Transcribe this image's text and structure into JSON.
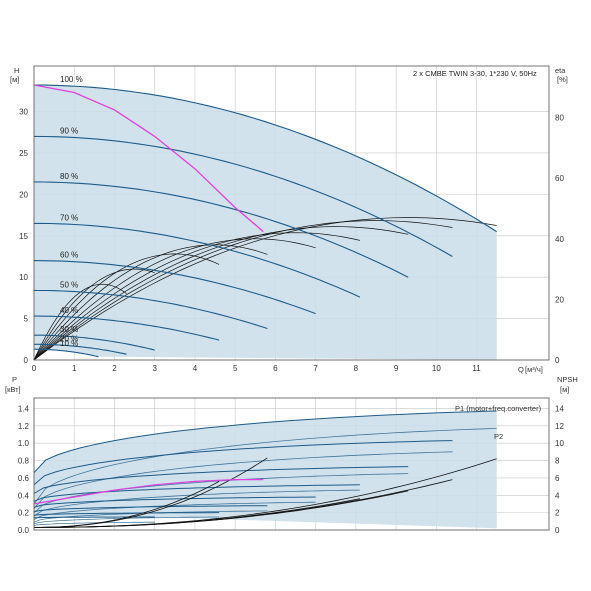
{
  "title": "2 x CMBE TWIN 3-30, 1*230 V, 50Hz",
  "colors": {
    "region": "#c9dde9",
    "curve": "#1d5b8a",
    "dark_curve": "#111111",
    "system": "#e040e0",
    "grid": "#c8c8c8",
    "frame": "#555555"
  },
  "chart_data": [
    {
      "type": "line",
      "name": "performance",
      "xlabel": "Q",
      "xunit": "[м³/ч]",
      "ylabel_left": "H",
      "yunit_left": "[м]",
      "ylabel_right": "eta",
      "yunit_right": "[%]",
      "xlim": [
        0,
        12.8
      ],
      "ylim": [
        0,
        35.5
      ],
      "eta_lim": [
        0,
        97
      ],
      "x_ticks": [
        0,
        1,
        2,
        3,
        4,
        5,
        6,
        7,
        8,
        9,
        10,
        11
      ],
      "y_ticks": [
        0,
        5,
        10,
        15,
        20,
        25,
        30
      ],
      "eta_ticks": [
        0,
        20,
        40,
        60,
        80
      ],
      "grid": true,
      "speed_curves": [
        {
          "label": "100 %",
          "h0": 33.2,
          "qmax": 11.5,
          "hend": 15.5
        },
        {
          "label": "90 %",
          "h0": 27.0,
          "qmax": 10.4,
          "hend": 12.5
        },
        {
          "label": "80 %",
          "h0": 21.5,
          "qmax": 9.3,
          "hend": 10.0
        },
        {
          "label": "70 %",
          "h0": 16.5,
          "qmax": 8.1,
          "hend": 7.6
        },
        {
          "label": "60 %",
          "h0": 12.0,
          "qmax": 7.0,
          "hend": 5.6
        },
        {
          "label": "50 %",
          "h0": 8.4,
          "qmax": 5.8,
          "hend": 3.8
        },
        {
          "label": "40 %",
          "h0": 5.3,
          "qmax": 4.6,
          "hend": 2.4
        },
        {
          "label": "30 %",
          "h0": 3.0,
          "qmax": 3.0,
          "hend": 1.2
        },
        {
          "label": "20 %",
          "h0": 1.9,
          "qmax": 2.3,
          "hend": 0.7
        },
        {
          "label": "10 %",
          "h0": 1.3,
          "qmax": 1.6,
          "hend": 0.4
        }
      ],
      "system_curve": {
        "x": [
          0,
          1.0,
          2.0,
          3.0,
          4.0,
          5.0,
          5.7
        ],
        "y": [
          33.2,
          32.3,
          30.2,
          27.0,
          23.1,
          18.4,
          15.5
        ]
      },
      "efficiency_curves": [
        {
          "qpeak": 9.3,
          "eta_peak": 47,
          "qmax": 11.5
        },
        {
          "qpeak": 8.5,
          "eta_peak": 46,
          "qmax": 10.4
        },
        {
          "qpeak": 7.5,
          "eta_peak": 44,
          "qmax": 9.3
        },
        {
          "qpeak": 6.5,
          "eta_peak": 42,
          "qmax": 8.1
        },
        {
          "qpeak": 5.5,
          "eta_peak": 40,
          "qmax": 7.0
        },
        {
          "qpeak": 4.5,
          "eta_peak": 38,
          "qmax": 5.8
        },
        {
          "qpeak": 3.5,
          "eta_peak": 35,
          "qmax": 4.6
        },
        {
          "qpeak": 2.5,
          "eta_peak": 30,
          "qmax": 3.0
        },
        {
          "qpeak": 1.7,
          "eta_peak": 25,
          "qmax": 2.3
        }
      ]
    },
    {
      "type": "line",
      "name": "power_npsh",
      "xlabel": "Q",
      "ylabel_left": "P",
      "yunit_left": "[кВт]",
      "ylabel_right": "NPSH",
      "yunit_right": "[м]",
      "xlim": [
        0,
        12.8
      ],
      "ylim": [
        0,
        1.52
      ],
      "npsh_lim": [
        0,
        15.2
      ],
      "y_ticks": [
        0,
        0.2,
        0.4,
        0.6,
        0.8,
        1.0,
        1.2,
        1.4
      ],
      "npsh_ticks": [
        0,
        2,
        4,
        6,
        8,
        10,
        12,
        14
      ],
      "grid": true,
      "series_labels": [
        "P1 (motor+freq.converter)",
        "P2"
      ],
      "p1_curves": [
        {
          "p0": 0.66,
          "pend": 1.37,
          "qmax": 11.5
        },
        {
          "p0": 0.52,
          "pend": 1.03,
          "qmax": 10.4
        },
        {
          "p0": 0.42,
          "pend": 0.73,
          "qmax": 9.3
        },
        {
          "p0": 0.33,
          "pend": 0.52,
          "qmax": 8.1
        },
        {
          "p0": 0.26,
          "pend": 0.38,
          "qmax": 7.0
        },
        {
          "p0": 0.21,
          "pend": 0.28,
          "qmax": 5.8
        },
        {
          "p0": 0.17,
          "pend": 0.2,
          "qmax": 4.6
        },
        {
          "p0": 0.14,
          "pend": 0.15,
          "qmax": 3.0
        }
      ],
      "p2_curves": [
        {
          "p0": 0.3,
          "pend": 1.17,
          "qmax": 11.5
        },
        {
          "p0": 0.25,
          "pend": 0.9,
          "qmax": 10.4
        },
        {
          "p0": 0.2,
          "pend": 0.65,
          "qmax": 9.3
        },
        {
          "p0": 0.16,
          "pend": 0.46,
          "qmax": 8.1
        },
        {
          "p0": 0.12,
          "pend": 0.32,
          "qmax": 7.0
        },
        {
          "p0": 0.09,
          "pend": 0.22,
          "qmax": 5.8
        },
        {
          "p0": 0.07,
          "pend": 0.15,
          "qmax": 4.6
        },
        {
          "p0": 0.05,
          "pend": 0.09,
          "qmax": 3.0
        }
      ],
      "power_system_curve": {
        "x": [
          0,
          1.0,
          2.0,
          3.0,
          4.0,
          5.0,
          5.7
        ],
        "y": [
          0.3,
          0.38,
          0.46,
          0.52,
          0.56,
          0.58,
          0.58
        ]
      },
      "npsh_curves": [
        {
          "qmax": 11.5,
          "npsh_end": 8.2
        },
        {
          "qmax": 10.4,
          "npsh_end": 5.8
        },
        {
          "qmax": 9.3,
          "npsh_end": 4.5
        },
        {
          "qmax": 8.1,
          "npsh_end": 3.6
        },
        {
          "qmax": 5.8,
          "npsh_end": 8.3
        },
        {
          "qmax": 4.6,
          "npsh_end": 5.6
        }
      ]
    }
  ]
}
